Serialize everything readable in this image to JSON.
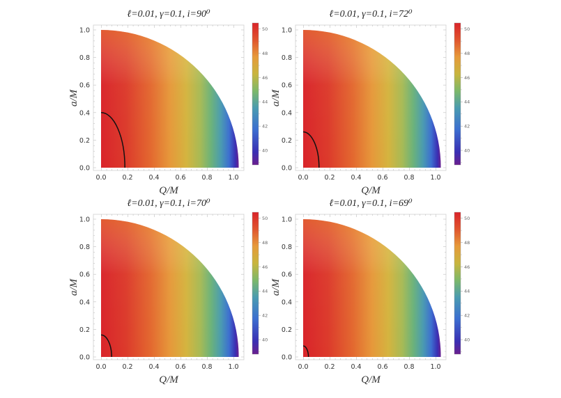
{
  "figure": {
    "layout": "2x2 grid of density plots with colorbars"
  },
  "panels": [
    {
      "title": "ℓ=0.01, γ=0.1, i=90⁰",
      "xlabel": "Q/M",
      "ylabel": "a/M"
    },
    {
      "title": "ℓ=0.01, γ=0.1, i=72⁰",
      "xlabel": "Q/M",
      "ylabel": "a/M"
    },
    {
      "title": "ℓ=0.01, γ=0.1, i=70⁰",
      "xlabel": "Q/M",
      "ylabel": "a/M"
    },
    {
      "title": "ℓ=0.01, γ=0.1, i=69⁰",
      "xlabel": "Q/M",
      "ylabel": "a/M"
    }
  ],
  "axes": {
    "x_ticks": [
      "0.0",
      "0.2",
      "0.4",
      "0.6",
      "0.8",
      "1.0"
    ],
    "y_ticks": [
      "0.0",
      "0.2",
      "0.4",
      "0.6",
      "0.8",
      "1.0"
    ],
    "colorbar_ticks": [
      "50",
      "48",
      "46",
      "44",
      "42",
      "40"
    ]
  },
  "colors": {
    "cmap": [
      "#6a1f8e",
      "#3a2fb3",
      "#3c6fd0",
      "#4a9bb0",
      "#7cb86a",
      "#c8b53e",
      "#e69a3a",
      "#e0552e",
      "#d9242a"
    ],
    "contour": "#111111",
    "frame": "#cfcfcf"
  },
  "chart_data": [
    {
      "type": "heatmap",
      "title": "ℓ=0.01, γ=0.1, i=90⁰",
      "xlabel": "Q/M",
      "ylabel": "a/M",
      "xlim": [
        0,
        1.05
      ],
      "ylim": [
        0,
        1.0
      ],
      "domain": "quarter disk a² + Q² ≤ 1 (extends to Q≈1.04 at a=0)",
      "colorbar": {
        "min": 38.8,
        "max": 50.5,
        "ticks": [
          40,
          42,
          44,
          46,
          48,
          50
        ]
      },
      "value_trend": "≈50 (red) near Q=0 decreasing to ≈39 (purple) near Q≈1.04; weakly increasing with decreasing a",
      "contour": {
        "a_at_Q0": 0.4,
        "Q_at_a0": 0.18
      }
    },
    {
      "type": "heatmap",
      "title": "ℓ=0.01, γ=0.1, i=72⁰",
      "xlabel": "Q/M",
      "ylabel": "a/M",
      "xlim": [
        0,
        1.05
      ],
      "ylim": [
        0,
        1.0
      ],
      "colorbar": {
        "min": 38.8,
        "max": 50.5,
        "ticks": [
          40,
          42,
          44,
          46,
          48,
          50
        ]
      },
      "contour": {
        "a_at_Q0": 0.26,
        "Q_at_a0": 0.12
      }
    },
    {
      "type": "heatmap",
      "title": "ℓ=0.01, γ=0.1, i=70⁰",
      "xlabel": "Q/M",
      "ylabel": "a/M",
      "xlim": [
        0,
        1.05
      ],
      "ylim": [
        0,
        1.0
      ],
      "colorbar": {
        "min": 38.8,
        "max": 50.5,
        "ticks": [
          40,
          42,
          44,
          46,
          48,
          50
        ]
      },
      "contour": {
        "a_at_Q0": 0.16,
        "Q_at_a0": 0.08
      }
    },
    {
      "type": "heatmap",
      "title": "ℓ=0.01, γ=0.1, i=69⁰",
      "xlabel": "Q/M",
      "ylabel": "a/M",
      "xlim": [
        0,
        1.05
      ],
      "ylim": [
        0,
        1.0
      ],
      "colorbar": {
        "min": 38.8,
        "max": 50.5,
        "ticks": [
          40,
          42,
          44,
          46,
          48,
          50
        ]
      },
      "contour": {
        "a_at_Q0": 0.08,
        "Q_at_a0": 0.04
      }
    }
  ]
}
